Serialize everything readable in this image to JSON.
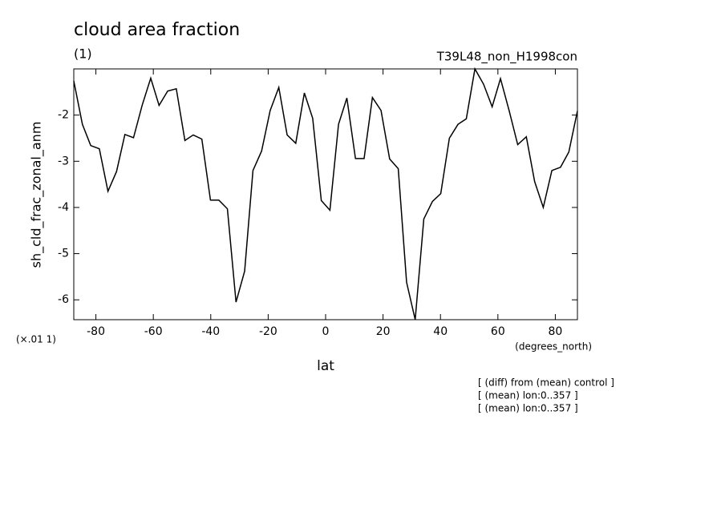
{
  "chart_data": {
    "type": "line",
    "title": "cloud area fraction",
    "subtitle": "(1)",
    "experiment": "T39L48_non_H1998con",
    "y_label": "sh_cld_frac_zonal_anm",
    "y_scale_label": "(×.01 1)",
    "x_label": "lat",
    "x_units": "(degrees_north)",
    "notes": [
      "[ (diff) from (mean) control ]",
      "[ (mean) lon:0..357 ]",
      "[ (mean) lon:0..357 ]"
    ],
    "x": [
      -87.7,
      -84.7,
      -81.8,
      -78.8,
      -75.8,
      -72.8,
      -69.9,
      -66.9,
      -63.9,
      -60.9,
      -58.0,
      -55.0,
      -52.0,
      -49.0,
      -46.1,
      -43.1,
      -40.1,
      -37.2,
      -34.2,
      -31.2,
      -28.2,
      -25.3,
      -22.3,
      -19.3,
      -16.3,
      -13.4,
      -10.4,
      -7.4,
      -4.5,
      -1.5,
      1.5,
      4.5,
      7.4,
      10.4,
      13.4,
      16.3,
      19.3,
      22.3,
      25.3,
      28.2,
      31.2,
      34.2,
      37.2,
      40.1,
      43.1,
      46.1,
      49.0,
      52.0,
      55.0,
      58.0,
      60.9,
      63.9,
      66.9,
      69.9,
      72.8,
      75.8,
      78.8,
      81.8,
      84.7,
      87.7
    ],
    "series": [
      {
        "color": "#000000",
        "values": [
          -1.26,
          -2.2,
          -2.66,
          -2.73,
          -3.65,
          -3.22,
          -2.42,
          -2.49,
          -1.79,
          -1.2,
          -1.79,
          -1.48,
          -1.43,
          -2.55,
          -2.43,
          -2.52,
          -3.84,
          -3.84,
          -4.03,
          -6.05,
          -5.38,
          -3.2,
          -2.78,
          -1.9,
          -1.4,
          -2.43,
          -2.61,
          -1.52,
          -2.07,
          -3.85,
          -4.06,
          -2.2,
          -1.63,
          -2.94,
          -2.94,
          -1.62,
          -1.9,
          -2.95,
          -3.16,
          -5.62,
          -6.43,
          -4.25,
          -3.87,
          -3.7,
          -2.5,
          -2.2,
          -2.08,
          -1.0,
          -1.33,
          -1.82,
          -1.21,
          -1.9,
          -2.64,
          -2.47,
          -3.44,
          -4.0,
          -3.2,
          -3.13,
          -2.8,
          -1.91
        ]
      }
    ],
    "xlim": [
      -87.7,
      87.7
    ],
    "ylim": [
      -6.43,
      -1.0
    ],
    "xticks": [
      -80,
      -60,
      -40,
      -20,
      0,
      20,
      40,
      60,
      80
    ],
    "yticks": [
      -6,
      -5,
      -4,
      -3,
      -2
    ]
  }
}
